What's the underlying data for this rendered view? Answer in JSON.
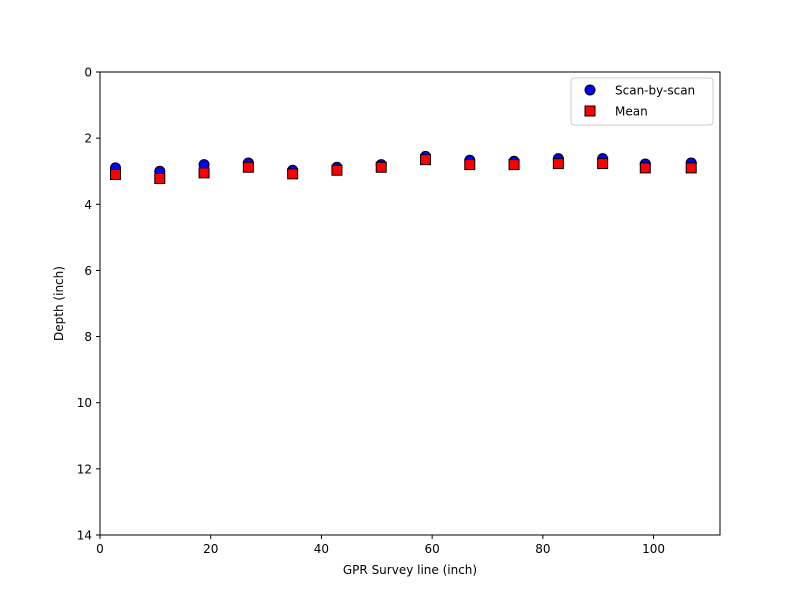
{
  "chart_data": {
    "type": "scatter",
    "title": "",
    "xlabel": "GPR Survey line (inch)",
    "ylabel": "Depth (inch)",
    "xlim": [
      0,
      112
    ],
    "ylim": [
      14,
      0
    ],
    "y_inverted": true,
    "grid": false,
    "legend_position": "top-right",
    "x_ticks": [
      0,
      20,
      40,
      60,
      80,
      100
    ],
    "y_ticks": [
      0,
      2,
      4,
      6,
      8,
      10,
      12,
      14
    ],
    "series": [
      {
        "name": "Scan-by-scan",
        "marker": "circle",
        "color": "#0000ff",
        "x": [
          2.8,
          10.8,
          18.8,
          26.8,
          34.8,
          42.8,
          50.8,
          58.8,
          66.8,
          74.8,
          82.8,
          90.8,
          98.5,
          106.8
        ],
        "y": [
          2.9,
          3.0,
          2.8,
          2.75,
          2.97,
          2.88,
          2.8,
          2.55,
          2.67,
          2.7,
          2.62,
          2.62,
          2.78,
          2.75
        ]
      },
      {
        "name": "Mean",
        "marker": "square",
        "color": "#ff0000",
        "x": [
          2.8,
          10.8,
          18.8,
          26.8,
          34.8,
          42.8,
          50.8,
          58.8,
          66.8,
          74.8,
          82.8,
          90.8,
          98.5,
          106.8
        ],
        "y": [
          3.1,
          3.22,
          3.05,
          2.88,
          3.08,
          2.97,
          2.88,
          2.65,
          2.8,
          2.8,
          2.77,
          2.77,
          2.9,
          2.9
        ]
      }
    ]
  }
}
